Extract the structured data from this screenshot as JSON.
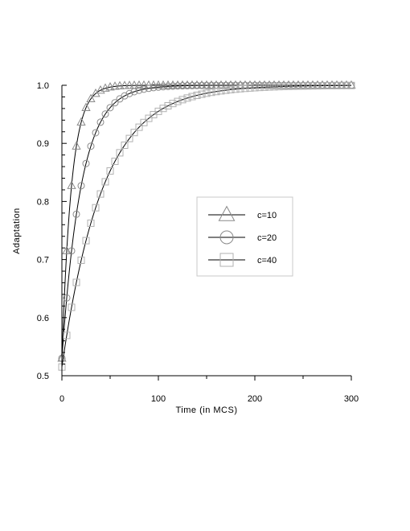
{
  "chart_data": {
    "type": "line",
    "xlabel": "Time (in MCS)",
    "ylabel": "Adaptation",
    "xlim": [
      0,
      300
    ],
    "ylim": [
      0.5,
      1.0
    ],
    "x_ticks": [
      "0",
      "100",
      "200",
      "300"
    ],
    "y_ticks": [
      "0.5",
      "0.6",
      "0.7",
      "0.8",
      "0.9",
      "1.0"
    ],
    "grid": false,
    "legend_position": "center-right",
    "series": [
      {
        "name": "c=10",
        "marker": "triangle",
        "marker_color": "#8a8a8a",
        "line_color": "#000000",
        "y0": 0.53,
        "tau": 10
      },
      {
        "name": "c=20",
        "marker": "circle",
        "marker_color": "#8a8a8a",
        "line_color": "#000000",
        "y0": 0.53,
        "tau": 20
      },
      {
        "name": "c=40",
        "marker": "square",
        "marker_color": "#b0b0b0",
        "line_color": "#000000",
        "y0": 0.515,
        "tau": 42
      }
    ]
  }
}
